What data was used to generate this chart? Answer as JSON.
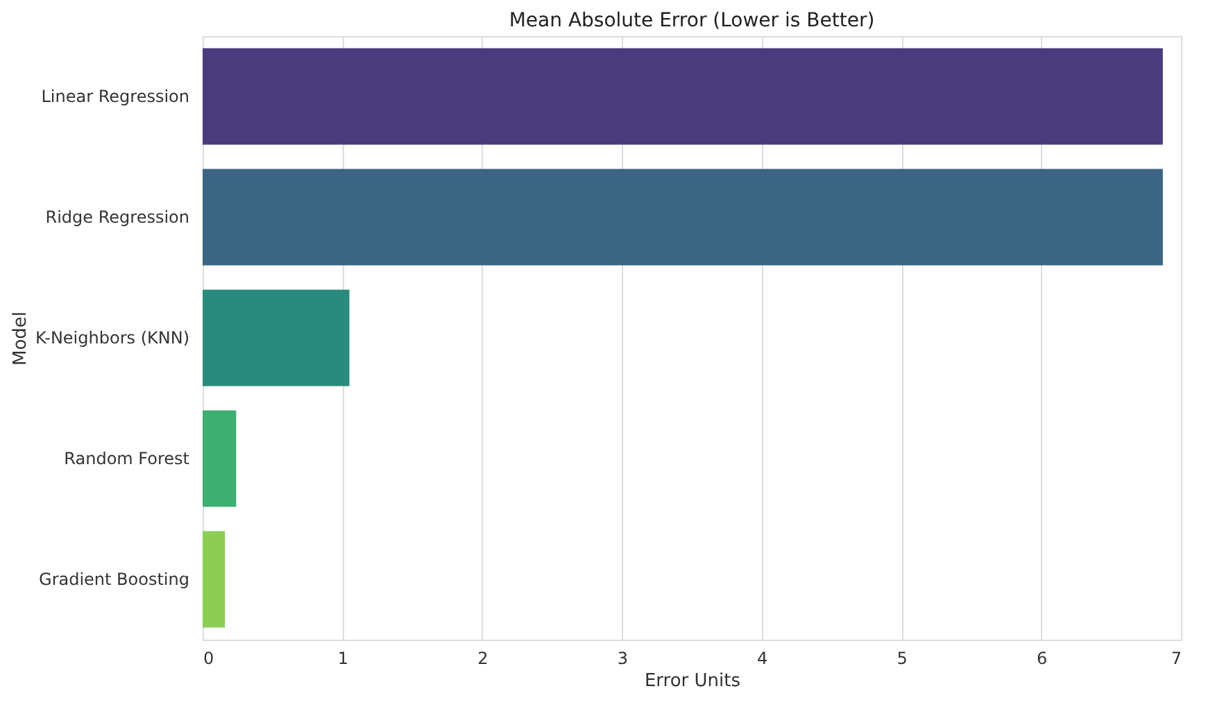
{
  "chart_data": {
    "type": "bar",
    "orientation": "horizontal",
    "title": "Mean Absolute Error (Lower is Better)",
    "xlabel": "Error Units",
    "ylabel": "Model",
    "categories": [
      "Linear Regression",
      "Ridge Regression",
      "K-Neighbors (KNN)",
      "Random Forest",
      "Gradient Boosting"
    ],
    "values": [
      6.87,
      6.87,
      1.05,
      0.24,
      0.16
    ],
    "colors": [
      "#4a3b7c",
      "#3b6583",
      "#2a8a7c",
      "#3fae72",
      "#8dcd55"
    ],
    "xlim": [
      0,
      7
    ],
    "xticks": [
      0,
      1,
      2,
      3,
      4,
      5,
      6,
      7
    ],
    "grid": "x"
  }
}
